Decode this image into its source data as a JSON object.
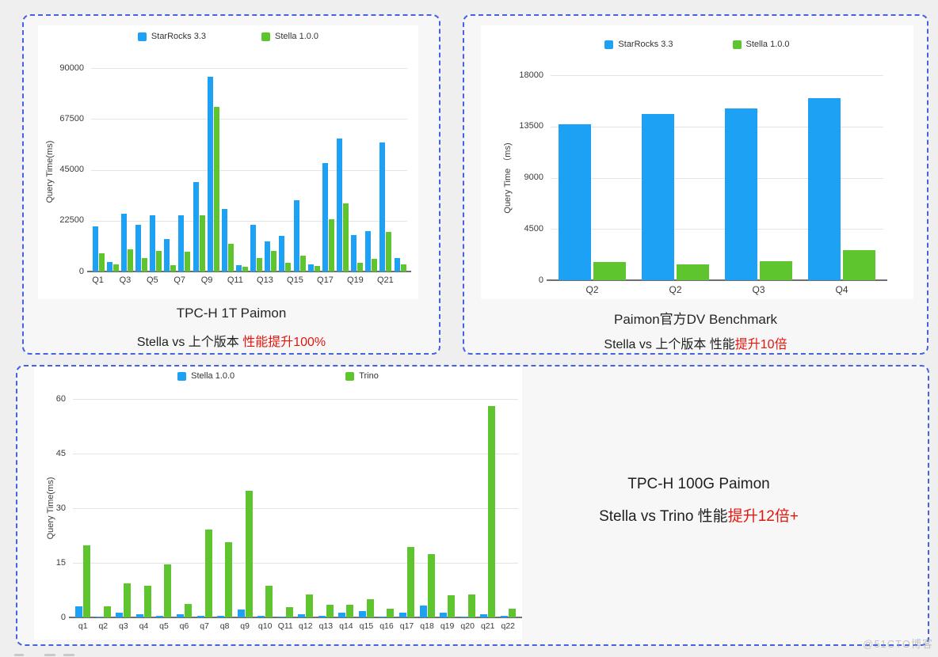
{
  "page": {
    "watermark": "@51CTO博客"
  },
  "colors": {
    "blue": "#1ca1f5",
    "green": "#5ec52f",
    "red": "#e3170d",
    "border": "#4562e3"
  },
  "chart_data": [
    {
      "type": "bar",
      "panel_title": "TPC-H 1T Paimon",
      "subtitle_black": "Stella vs 上个版本 ",
      "subtitle_red": "性能提升100%",
      "ylabel": "Query Time(ms)",
      "ylim": [
        0,
        90000
      ],
      "yticks": [
        "90000",
        "67500",
        "45000",
        "22500",
        "0"
      ],
      "grid": true,
      "legend_position": "top",
      "categories": [
        "Q1",
        "Q2",
        "Q3",
        "Q4",
        "Q5",
        "Q6",
        "Q7",
        "Q8",
        "Q9",
        "Q10",
        "Q11",
        "Q12",
        "Q13",
        "Q14",
        "Q15",
        "Q16",
        "Q17",
        "Q18",
        "Q19",
        "Q20",
        "Q21",
        "Q22"
      ],
      "x_tick_labels": [
        "Q1",
        "",
        "Q3",
        "",
        "Q5",
        "",
        "Q7",
        "",
        "Q9",
        "",
        "Q11",
        "",
        "Q13",
        "",
        "Q15",
        "",
        "Q17",
        "",
        "Q19",
        "",
        "Q21",
        ""
      ],
      "series": [
        {
          "name": "StarRocks 3.3",
          "color": "blue",
          "values": [
            20100,
            4300,
            25700,
            20600,
            25000,
            14400,
            25000,
            39600,
            86300,
            27500,
            2900,
            20800,
            13200,
            15900,
            31400,
            3100,
            48000,
            58900,
            16200,
            18000,
            57200,
            6000
          ]
        },
        {
          "name": "Stella 1.0.0",
          "color": "green",
          "values": [
            8100,
            3300,
            9900,
            5800,
            9200,
            2700,
            8800,
            24900,
            72700,
            12400,
            2200,
            5900,
            9000,
            3800,
            7100,
            2400,
            23000,
            30200,
            3700,
            5600,
            17500,
            3100
          ]
        }
      ]
    },
    {
      "type": "bar",
      "panel_title": "Paimon官方DV Benchmark",
      "subtitle_black": "Stella vs 上个版本 性能",
      "subtitle_red": "提升10倍",
      "ylabel": "Query Time （ms)",
      "ylim": [
        0,
        18000
      ],
      "yticks": [
        "18000",
        "13500",
        "9000",
        "4500",
        "0"
      ],
      "grid": true,
      "legend_position": "top",
      "categories": [
        "Q2",
        "Q2",
        "Q3",
        "Q4"
      ],
      "x_tick_labels": [
        "Q2",
        "Q2",
        "Q3",
        "Q4"
      ],
      "series": [
        {
          "name": "StarRocks 3.3",
          "color": "blue",
          "values": [
            13700,
            14600,
            15100,
            16000
          ]
        },
        {
          "name": "Stella 1.0.0",
          "color": "green",
          "values": [
            1600,
            1400,
            1700,
            2650
          ]
        }
      ]
    },
    {
      "type": "bar",
      "panel_title": "TPC-H 100G Paimon",
      "subtitle_black": "Stella  vs Trino 性能",
      "subtitle_red": "提升12倍+",
      "ylabel": "Query Time(ms)",
      "ylim": [
        0,
        60
      ],
      "yticks": [
        "60",
        "45",
        "30",
        "15",
        "0"
      ],
      "grid": true,
      "legend_position": "top",
      "categories": [
        "q1",
        "q2",
        "q3",
        "q4",
        "q5",
        "q6",
        "q7",
        "q8",
        "q9",
        "q10",
        "Q11",
        "q12",
        "q13",
        "q14",
        "q15",
        "q16",
        "q17",
        "q18",
        "q19",
        "q20",
        "q21",
        "q22"
      ],
      "x_tick_labels": [
        "q1",
        "q2",
        "q3",
        "q4",
        "q5",
        "q6",
        "q7",
        "q8",
        "q9",
        "q10",
        "Q11",
        "q12",
        "q13",
        "q14",
        "q15",
        "q16",
        "q17",
        "q18",
        "q19",
        "q20",
        "q21",
        "q22"
      ],
      "series": [
        {
          "name": "Stella 1.0.0",
          "color": "blue",
          "values": [
            3,
            0.2,
            1.2,
            0.8,
            0.4,
            0.8,
            0.4,
            0.4,
            2.2,
            0.5,
            0.2,
            0.9,
            0.4,
            1.3,
            1.7,
            0.1,
            1.2,
            3.3,
            1.3,
            0.1,
            0.8,
            0.4
          ]
        },
        {
          "name": "Trino",
          "color": "green",
          "values": [
            19.8,
            3,
            9.4,
            8.8,
            14.5,
            3.8,
            24.1,
            20.7,
            34.7,
            8.6,
            2.8,
            6.3,
            3.5,
            3.5,
            5.1,
            2.4,
            19.3,
            17.4,
            6,
            6.4,
            58.1,
            2.4
          ]
        }
      ]
    }
  ]
}
